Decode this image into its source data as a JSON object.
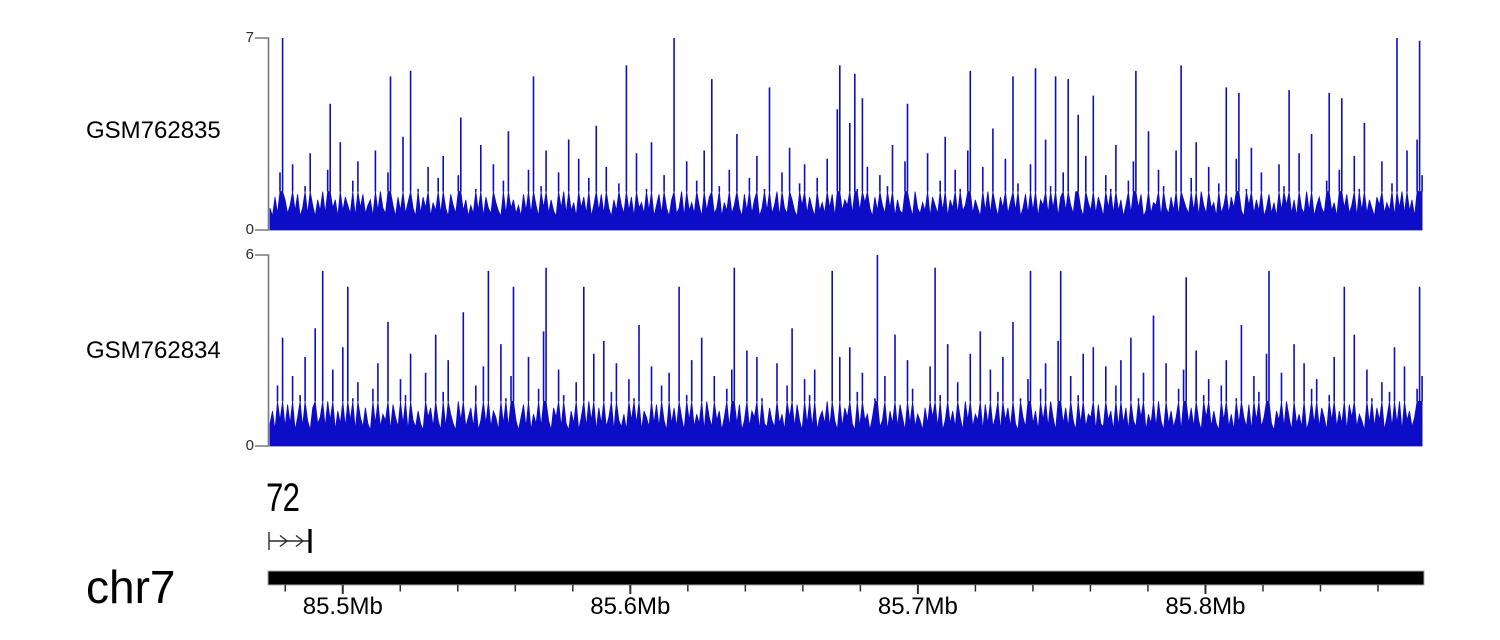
{
  "colors": {
    "signal": "#0d0dc8",
    "axis_bracket": "#7a7a7a",
    "genome_bar": "#000000",
    "genome_bar_outline": "#a8a8a8",
    "tick": "#2b2b2b",
    "glyph": "#2b2b2b"
  },
  "chart_data": {
    "type": "area",
    "title": "",
    "chromosome": "chr7",
    "axis": {
      "chromosome_label": "chr7",
      "unit": "Mb",
      "range_mb": [
        85.474,
        85.876
      ],
      "major_ticks_mb": [
        85.5,
        85.6,
        85.7,
        85.8
      ],
      "tick_labels": [
        "85.5Mb",
        "85.6Mb",
        "85.7Mb",
        "85.8Mb"
      ],
      "minor_start_mb": 85.48,
      "minor_end_mb": 85.86,
      "minor_step_mb": 0.02
    },
    "annotation": {
      "label": "72",
      "start_mb": 85.474,
      "end_mb": 85.489
    },
    "tracks": [
      {
        "name": "GSM762835",
        "ymax_label": "7",
        "ymin_label": "0",
        "ylim": [
          0,
          7
        ],
        "values": [
          0.8,
          0.5,
          1.2,
          0.6,
          2.1,
          7,
          1.1,
          0.6,
          0.9,
          2.4,
          0.7,
          1.3,
          0.5,
          0.8,
          1.6,
          0.6,
          2.8,
          0.9,
          0.5,
          1.1,
          0.7,
          1.4,
          0.6,
          2.2,
          4.6,
          0.8,
          1.1,
          0.5,
          3.2,
          0.7,
          1.2,
          0.9,
          0.6,
          1.8,
          0.5,
          2.5,
          0.8,
          1.3,
          0.6,
          0.9,
          1.1,
          0.5,
          2.9,
          0.7,
          1.4,
          0.8,
          0.6,
          2.1,
          5.6,
          0.9,
          0.5,
          1.2,
          0.7,
          3.4,
          0.6,
          1,
          5.8,
          0.8,
          0.5,
          1.5,
          0.6,
          1.2,
          0.8,
          2.3,
          0.5,
          1,
          0.7,
          1.9,
          0.6,
          2.7,
          0.8,
          0.5,
          1.3,
          0.9,
          0.6,
          2,
          4.1,
          0.7,
          1.1,
          0.5,
          0.9,
          0.6,
          1.5,
          0.7,
          3.1,
          0.5,
          1.2,
          0.8,
          0.6,
          2.4,
          1,
          0.7,
          0.5,
          1.8,
          0.6,
          3.6,
          0.8,
          1.1,
          0.6,
          0.9,
          0.5,
          1.3,
          0.7,
          2.2,
          0.6,
          5.6,
          0.9,
          0.5,
          1.6,
          0.8,
          2.9,
          0.6,
          1.1,
          0.7,
          0.5,
          2.1,
          0.8,
          1.4,
          0.6,
          3.3,
          0.7,
          1,
          0.5,
          2.6,
          0.8,
          1.2,
          0.6,
          1.9,
          0.5,
          0.9,
          3.8,
          0.7,
          1.3,
          0.6,
          2.3,
          0.8,
          0.5,
          1.1,
          0.7,
          1.7,
          0.9,
          0.6,
          6,
          0.7,
          1.2,
          0.5,
          2.8,
          0.8,
          1,
          0.6,
          1.5,
          0.7,
          3.2,
          0.5,
          0.9,
          1.3,
          0.6,
          2,
          0.8,
          0.5,
          1.1,
          7,
          0.6,
          0.8,
          1.4,
          0.5,
          2.5,
          0.7,
          1,
          0.6,
          1.8,
          0.9,
          0.5,
          2.9,
          0.7,
          1.2,
          5.5,
          0.6,
          0.8,
          1.6,
          0.5,
          1,
          0.7,
          2.2,
          0.6,
          0.9,
          3.5,
          0.8,
          0.5,
          1.3,
          0.7,
          1.9,
          0.6,
          1.1,
          2.7,
          0.5,
          0.8,
          1.5,
          0.7,
          5.2,
          0.6,
          0.9,
          1.4,
          0.5,
          2.1,
          0.8,
          0.6,
          3,
          1.1,
          0.7,
          0.5,
          1.7,
          0.9,
          2.4,
          0.6,
          1.2,
          0.8,
          0.5,
          1.9,
          0.7,
          1,
          0.6,
          2.6,
          0.8,
          1.3,
          0.5,
          4.4,
          6,
          0.7,
          1.1,
          0.9,
          3.9,
          0.6,
          5.7,
          1.5,
          0.7,
          4.8,
          1,
          2.3,
          0.8,
          0.5,
          1.2,
          0.7,
          2,
          0.9,
          0.6,
          1.6,
          0.8,
          3.1,
          0.5,
          1.1,
          0.7,
          0.6,
          2.5,
          4.6,
          0.9,
          0.5,
          1.4,
          0.8,
          0.6,
          1,
          0.7,
          2.8,
          0.5,
          1.2,
          0.9,
          0.6,
          1.8,
          0.7,
          3.4,
          0.5,
          1.1,
          0.8,
          2.2,
          0.6,
          1.5,
          0.7,
          0.9,
          2.9,
          5.8,
          0.6,
          1.1,
          0.8,
          0.5,
          2.3,
          0.7,
          1.4,
          0.6,
          3.7,
          0.9,
          0.5,
          1.2,
          0.8,
          2.6,
          0.6,
          1,
          5.6,
          0.7,
          1.7,
          0.5,
          0.8,
          1.3,
          0.6,
          2.4,
          0.7,
          5.9,
          0.5,
          1.1,
          0.9,
          3.3,
          0.6,
          1.6,
          0.8,
          5.6,
          0.5,
          1.2,
          2.1,
          0.7,
          5.5,
          0.9,
          0.6,
          1.4,
          4.2,
          0.8,
          0.5,
          2.7,
          1,
          0.7,
          4.9,
          0.6,
          1.2,
          0.9,
          0.5,
          2,
          0.8,
          1.5,
          0.6,
          3.1,
          0.7,
          1.1,
          0.5,
          0.9,
          1.8,
          0.6,
          2.5,
          5.8,
          0.8,
          1.3,
          0.5,
          0.7,
          3.6,
          0.6,
          1,
          0.9,
          2.2,
          0.5,
          1.6,
          0.8,
          0.6,
          1.2,
          0.7,
          2.9,
          0.5,
          6,
          1.1,
          0.8,
          0.6,
          1.9,
          0.7,
          3.2,
          0.5,
          1.4,
          0.9,
          0.6,
          2.3,
          0.8,
          1,
          0.5,
          1.7,
          0.6,
          0.9,
          5.2,
          0.6,
          1.2,
          0.8,
          2.6,
          5,
          0.7,
          0.5,
          1.5,
          0.9,
          3,
          0.6,
          1.1,
          0.7,
          2.1,
          0.5,
          0.8,
          1.3,
          0.6,
          1,
          0.5,
          2.4,
          0.7,
          1.6,
          0.9,
          5.1,
          0.6,
          1.1,
          0.5,
          2.8,
          0.8,
          0.6,
          1.4,
          0.7,
          3.5,
          0.5,
          0.9,
          1.2,
          0.8,
          0.6,
          1.8,
          5,
          0.7,
          1,
          0.5,
          2.2,
          4.8,
          0.8,
          1.3,
          0.6,
          0.9,
          2.7,
          0.5,
          1.5,
          0.7,
          3.9,
          0.6,
          1.1,
          0.8,
          0.5,
          1.2,
          0.9,
          2.5,
          0.6,
          1,
          0.7,
          1.7,
          0.5,
          7,
          0.8,
          1.4,
          0.6,
          2.9,
          0.7,
          1.1,
          0.5,
          3.3,
          6.9,
          2
        ]
      },
      {
        "name": "GSM762834",
        "ymax_label": "6",
        "ymin_label": "0",
        "ylim": [
          0,
          6
        ],
        "values": [
          0.7,
          1.1,
          0.5,
          1.9,
          0.8,
          3.4,
          0.6,
          1.3,
          0.7,
          2.2,
          0.5,
          0.9,
          1.6,
          0.6,
          2.8,
          0.8,
          0.5,
          1.2,
          3.7,
          0.7,
          0.9,
          5.5,
          0.6,
          1.4,
          0.8,
          2.4,
          0.5,
          1.1,
          0.7,
          3.1,
          0.6,
          5,
          0.8,
          1.5,
          0.5,
          2,
          0.9,
          0.6,
          1.2,
          0.7,
          0.5,
          1.8,
          0.7,
          2.6,
          0.6,
          1,
          0.8,
          3.9,
          0.5,
          1.3,
          0.9,
          0.6,
          2.1,
          0.7,
          1.6,
          0.5,
          2.9,
          0.8,
          0.6,
          1.1,
          0.7,
          0.5,
          2.3,
          0.9,
          1.2,
          0.6,
          3.5,
          0.8,
          0.5,
          1.7,
          0.6,
          2.7,
          1,
          0.7,
          0.5,
          1.4,
          0.8,
          4.2,
          0.6,
          0.9,
          1.2,
          0.6,
          1.9,
          0.5,
          0.8,
          2.5,
          0.7,
          5.5,
          0.6,
          1.1,
          0.9,
          0.5,
          3.2,
          0.7,
          1.5,
          0.6,
          2.2,
          5,
          0.8,
          0.5,
          0.9,
          1.3,
          0.6,
          2.8,
          0.5,
          1,
          0.7,
          1.8,
          0.6,
          3.6,
          5.6,
          0.8,
          0.5,
          1.2,
          0.9,
          2.4,
          0.6,
          1.6,
          0.7,
          0.5,
          1.1,
          0.7,
          2,
          0.5,
          0.9,
          5,
          0.6,
          1.4,
          0.8,
          2.9,
          0.5,
          1.2,
          0.7,
          3.3,
          0.6,
          0.9,
          1.7,
          0.5,
          2.6,
          0.8,
          0.6,
          1,
          0.5,
          2.1,
          0.8,
          1.5,
          0.7,
          3.8,
          0.5,
          1.1,
          0.9,
          0.6,
          2.5,
          0.7,
          1.3,
          0.6,
          1.9,
          0.8,
          0.5,
          2.3,
          0.7,
          1.2,
          0.6,
          5,
          0.9,
          0.5,
          1.6,
          0.8,
          2.7,
          0.6,
          1,
          0.7,
          3.4,
          0.5,
          1.4,
          0.9,
          0.6,
          2.2,
          0.8,
          1.1,
          0.5,
          0.9,
          1.8,
          0.6,
          2.4,
          5.6,
          0.7,
          1.3,
          0.5,
          0.8,
          3,
          0.6,
          1.1,
          0.9,
          2.8,
          0.5,
          1.5,
          0.7,
          0.6,
          1.2,
          0.8,
          0.6,
          2.6,
          0.7,
          1,
          0.5,
          1.9,
          0.9,
          3.7,
          0.6,
          1.3,
          0.8,
          0.5,
          2.1,
          0.7,
          1.6,
          0.6,
          2.4,
          0.5,
          0.9,
          1.1,
          0.7,
          1.4,
          0.6,
          5.5,
          0.8,
          0.5,
          2.8,
          0.6,
          1.2,
          0.9,
          3.1,
          0.7,
          0.5,
          1.7,
          0.6,
          2.3,
          0.8,
          1,
          0.5,
          0.9,
          1.5,
          6,
          0.6,
          0.8,
          2.2,
          0.5,
          1.1,
          0.7,
          3.5,
          0.6,
          1.3,
          0.9,
          0.5,
          2.7,
          0.7,
          1.8,
          0.6,
          1,
          0.8,
          0.5,
          1.2,
          0.7,
          2.5,
          0.9,
          5.6,
          0.6,
          1.6,
          0.5,
          0.8,
          3.2,
          0.7,
          1.1,
          0.6,
          2,
          0.9,
          0.5,
          1.4,
          0.8,
          2.9,
          0.6,
          1,
          0.8,
          3.6,
          0.5,
          1.3,
          0.7,
          2.4,
          0.6,
          0.9,
          1.7,
          0.5,
          2.8,
          0.8,
          1.2,
          0.6,
          3.9,
          0.7,
          0.5,
          1.5,
          0.9,
          0.6,
          2.1,
          5.5,
          0.7,
          1.1,
          0.5,
          1.8,
          0.8,
          2.6,
          0.6,
          1.4,
          0.9,
          0.5,
          3.3,
          5.5,
          0.7,
          1.2,
          0.6,
          2.2,
          0.8,
          0.5,
          1.6,
          0.7,
          2.9,
          0.6,
          1,
          0.9,
          3.1,
          0.5,
          1.3,
          0.7,
          0.6,
          2.5,
          0.8,
          1.1,
          0.5,
          1.9,
          0.6,
          2.7,
          0.7,
          1.2,
          0.5,
          3.4,
          0.8,
          0.6,
          1.5,
          0.9,
          2.3,
          0.5,
          1,
          0.7,
          4.1,
          0.6,
          1.4,
          0.8,
          0.5,
          2.6,
          0.7,
          1.1,
          0.6,
          0.9,
          1.8,
          0.5,
          2.4,
          5.3,
          0.7,
          1.2,
          0.6,
          3,
          0.8,
          0.5,
          1.6,
          0.9,
          2.1,
          0.6,
          1.1,
          0.7,
          0.5,
          1.9,
          0.8,
          2.7,
          0.6,
          1,
          0.5,
          1.5,
          0.7,
          3.8,
          0.9,
          0.6,
          1.3,
          0.5,
          2.2,
          0.8,
          1.7,
          0.6,
          0.9,
          2.9,
          5.5,
          0.7,
          0.5,
          1.1,
          0.8,
          2.3,
          0.6,
          1.4,
          0.9,
          0.5,
          3.2,
          0.7,
          1,
          0.6,
          2.6,
          0.5,
          0.8,
          1.8,
          0.7,
          2.1,
          0.6,
          1.2,
          0.9,
          0.5,
          1.6,
          0.8,
          2.8,
          0.6,
          1.1,
          0.7,
          5,
          0.5,
          1.3,
          0.9,
          3.5,
          0.6,
          1,
          0.8,
          0.5,
          2.4,
          0.7,
          1.5,
          0.6,
          1.2,
          0.8,
          2,
          0.5,
          0.9,
          1.7,
          0.6,
          3.1,
          0.7,
          1.4,
          0.5,
          2.5,
          0.8,
          1.1,
          0.6,
          0.9,
          1.8,
          5,
          2.2
        ]
      }
    ]
  }
}
